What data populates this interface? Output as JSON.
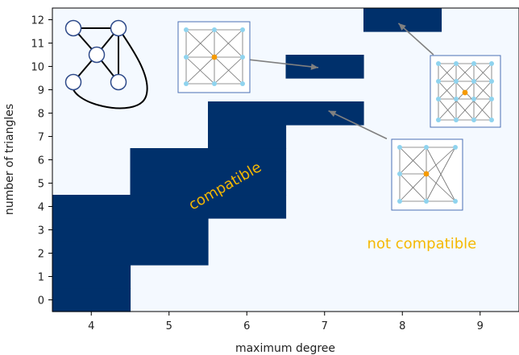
{
  "chart_data": {
    "type": "heatmap",
    "title": "",
    "xlabel": "maximum degree",
    "ylabel": "number of triangles",
    "x_ticks": [
      4,
      5,
      6,
      7,
      8,
      9
    ],
    "y_ticks": [
      0,
      1,
      2,
      3,
      4,
      5,
      6,
      7,
      8,
      9,
      10,
      11,
      12
    ],
    "xlim": [
      3.5,
      9.5
    ],
    "ylim": [
      -0.5,
      12.5
    ],
    "grid": false,
    "colors": {
      "compatible": "#00306b",
      "not_compatible": "#f4f9ff",
      "annotation": "#f5b800",
      "inset_border": "#4a6fb5",
      "inset_node": "#8fd3ee",
      "inset_center": "#f59a00"
    },
    "compatible_columns": [
      {
        "degree": 4,
        "triangles": [
          0,
          1,
          2,
          3,
          4
        ]
      },
      {
        "degree": 5,
        "triangles": [
          2,
          3,
          4,
          5,
          6
        ]
      },
      {
        "degree": 6,
        "triangles": [
          4,
          5,
          6,
          7,
          8
        ]
      },
      {
        "degree": 7,
        "triangles": [
          8,
          10
        ]
      },
      {
        "degree": 8,
        "triangles": [
          12
        ]
      }
    ],
    "annotations": [
      {
        "id": "compatible",
        "text": "compatible",
        "x": 5.75,
        "y": 4.7,
        "rotation": -30
      },
      {
        "id": "not-compatible",
        "text": "not compatible",
        "x": 8.25,
        "y": 2.2,
        "rotation": 0
      }
    ],
    "arrows": [
      {
        "from": [
          6.0,
          10.3
        ],
        "to": [
          6.92,
          9.95
        ]
      },
      {
        "from": [
          7.8,
          6.9
        ],
        "to": [
          7.05,
          8.1
        ]
      },
      {
        "from": [
          8.4,
          10.5
        ],
        "to": [
          7.95,
          11.85
        ]
      }
    ]
  }
}
